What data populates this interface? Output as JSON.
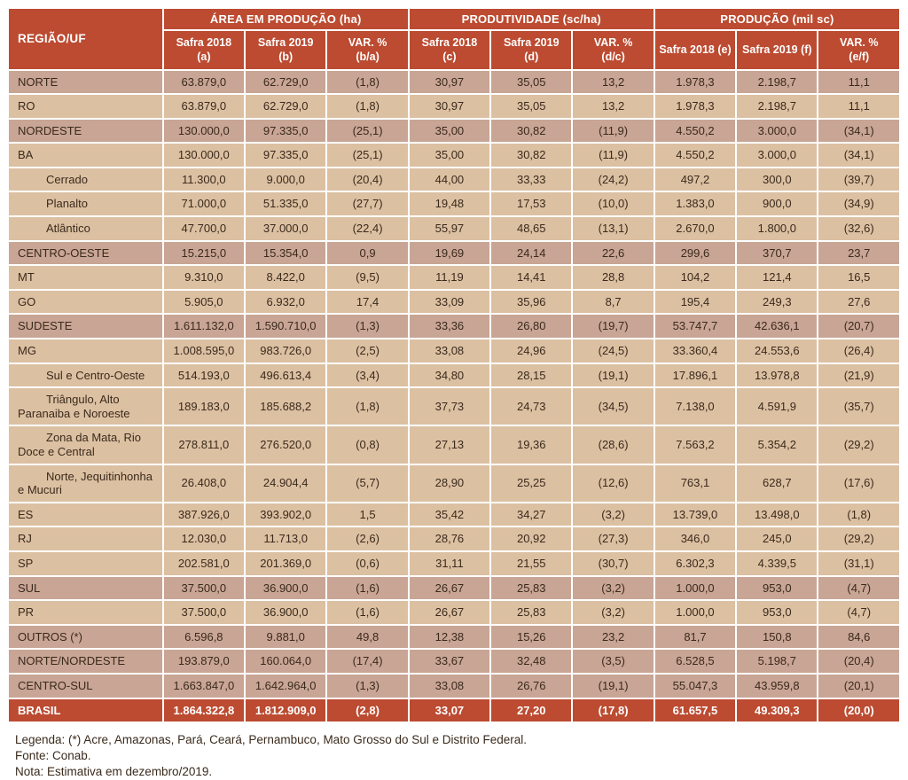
{
  "colors": {
    "header_red": "#bc4b31",
    "row_region": "#c9a595",
    "row_state": "#dcc0a2",
    "ink": "#3a2a1c"
  },
  "table": {
    "corner_header": "REGIÃO/UF",
    "groups": [
      {
        "label": "ÁREA EM PRODUÇÃO (ha)"
      },
      {
        "label": "PRODUTIVIDADE (sc/ha)"
      },
      {
        "label": "PRODUÇÃO  (mil sc)"
      }
    ],
    "sub_headers": [
      [
        "Safra 2018",
        "(a)"
      ],
      [
        "Safra 2019",
        "(b)"
      ],
      [
        "VAR. %",
        "(b/a)"
      ],
      [
        "Safra 2018",
        "(c)"
      ],
      [
        "Safra 2019",
        "(d)"
      ],
      [
        "VAR. %",
        "(d/c)"
      ],
      [
        "Safra 2018 (e)",
        ""
      ],
      [
        "Safra 2019 (f)",
        ""
      ],
      [
        "VAR. %",
        "(e/f)"
      ]
    ],
    "rows": [
      {
        "label": "NORTE",
        "style": "region",
        "indent": false,
        "values": [
          "63.879,0",
          "62.729,0",
          "(1,8)",
          "30,97",
          "35,05",
          "13,2",
          "1.978,3",
          "2.198,7",
          "11,1"
        ]
      },
      {
        "label": "RO",
        "style": "state",
        "indent": false,
        "values": [
          "63.879,0",
          "62.729,0",
          "(1,8)",
          "30,97",
          "35,05",
          "13,2",
          "1.978,3",
          "2.198,7",
          "11,1"
        ]
      },
      {
        "label": "NORDESTE",
        "style": "region",
        "indent": false,
        "values": [
          "130.000,0",
          "97.335,0",
          "(25,1)",
          "35,00",
          "30,82",
          "(11,9)",
          "4.550,2",
          "3.000,0",
          "(34,1)"
        ]
      },
      {
        "label": "BA",
        "style": "state",
        "indent": false,
        "values": [
          "130.000,0",
          "97.335,0",
          "(25,1)",
          "35,00",
          "30,82",
          "(11,9)",
          "4.550,2",
          "3.000,0",
          "(34,1)"
        ]
      },
      {
        "label": "Cerrado",
        "style": "state",
        "indent": true,
        "values": [
          "11.300,0",
          "9.000,0",
          "(20,4)",
          "44,00",
          "33,33",
          "(24,2)",
          "497,2",
          "300,0",
          "(39,7)"
        ]
      },
      {
        "label": "Planalto",
        "style": "state",
        "indent": true,
        "values": [
          "71.000,0",
          "51.335,0",
          "(27,7)",
          "19,48",
          "17,53",
          "(10,0)",
          "1.383,0",
          "900,0",
          "(34,9)"
        ]
      },
      {
        "label": "Atlântico",
        "style": "state",
        "indent": true,
        "values": [
          "47.700,0",
          "37.000,0",
          "(22,4)",
          "55,97",
          "48,65",
          "(13,1)",
          "2.670,0",
          "1.800,0",
          "(32,6)"
        ]
      },
      {
        "label": "CENTRO-OESTE",
        "style": "region",
        "indent": false,
        "values": [
          "15.215,0",
          "15.354,0",
          "0,9",
          "19,69",
          "24,14",
          "22,6",
          "299,6",
          "370,7",
          "23,7"
        ]
      },
      {
        "label": "MT",
        "style": "state",
        "indent": false,
        "values": [
          "9.310,0",
          "8.422,0",
          "(9,5)",
          "11,19",
          "14,41",
          "28,8",
          "104,2",
          "121,4",
          "16,5"
        ]
      },
      {
        "label": "GO",
        "style": "state",
        "indent": false,
        "values": [
          "5.905,0",
          "6.932,0",
          "17,4",
          "33,09",
          "35,96",
          "8,7",
          "195,4",
          "249,3",
          "27,6"
        ]
      },
      {
        "label": "SUDESTE",
        "style": "region",
        "indent": false,
        "values": [
          "1.611.132,0",
          "1.590.710,0",
          "(1,3)",
          "33,36",
          "26,80",
          "(19,7)",
          "53.747,7",
          "42.636,1",
          "(20,7)"
        ]
      },
      {
        "label": "MG",
        "style": "state",
        "indent": false,
        "values": [
          "1.008.595,0",
          "983.726,0",
          "(2,5)",
          "33,08",
          "24,96",
          "(24,5)",
          "33.360,4",
          "24.553,6",
          "(26,4)"
        ]
      },
      {
        "label": "Sul e Centro-Oeste",
        "style": "state",
        "indent": true,
        "values": [
          "514.193,0",
          "496.613,4",
          "(3,4)",
          "34,80",
          "28,15",
          "(19,1)",
          "17.896,1",
          "13.978,8",
          "(21,9)"
        ]
      },
      {
        "label": "Triângulo, Alto Paranaiba e Noroeste",
        "style": "state",
        "indent": true,
        "values": [
          "189.183,0",
          "185.688,2",
          "(1,8)",
          "37,73",
          "24,73",
          "(34,5)",
          "7.138,0",
          "4.591,9",
          "(35,7)"
        ]
      },
      {
        "label": "Zona da Mata, Rio Doce e Central",
        "style": "state",
        "indent": true,
        "values": [
          "278.811,0",
          "276.520,0",
          "(0,8)",
          "27,13",
          "19,36",
          "(28,6)",
          "7.563,2",
          "5.354,2",
          "(29,2)"
        ]
      },
      {
        "label": "Norte, Jequitinhonha e Mucuri",
        "style": "state",
        "indent": true,
        "values": [
          "26.408,0",
          "24.904,4",
          "(5,7)",
          "28,90",
          "25,25",
          "(12,6)",
          "763,1",
          "628,7",
          "(17,6)"
        ]
      },
      {
        "label": "ES",
        "style": "state",
        "indent": false,
        "values": [
          "387.926,0",
          "393.902,0",
          "1,5",
          "35,42",
          "34,27",
          "(3,2)",
          "13.739,0",
          "13.498,0",
          "(1,8)"
        ]
      },
      {
        "label": "RJ",
        "style": "state",
        "indent": false,
        "values": [
          "12.030,0",
          "11.713,0",
          "(2,6)",
          "28,76",
          "20,92",
          "(27,3)",
          "346,0",
          "245,0",
          "(29,2)"
        ]
      },
      {
        "label": "SP",
        "style": "state",
        "indent": false,
        "values": [
          "202.581,0",
          "201.369,0",
          "(0,6)",
          "31,11",
          "21,55",
          "(30,7)",
          "6.302,3",
          "4.339,5",
          "(31,1)"
        ]
      },
      {
        "label": "SUL",
        "style": "region",
        "indent": false,
        "values": [
          "37.500,0",
          "36.900,0",
          "(1,6)",
          "26,67",
          "25,83",
          "(3,2)",
          "1.000,0",
          "953,0",
          "(4,7)"
        ]
      },
      {
        "label": "PR",
        "style": "state",
        "indent": false,
        "values": [
          "37.500,0",
          "36.900,0",
          "(1,6)",
          "26,67",
          "25,83",
          "(3,2)",
          "1.000,0",
          "953,0",
          "(4,7)"
        ]
      },
      {
        "label": "OUTROS (*)",
        "style": "region",
        "indent": false,
        "values": [
          "6.596,8",
          "9.881,0",
          "49,8",
          "12,38",
          "15,26",
          "23,2",
          "81,7",
          "150,8",
          "84,6"
        ]
      },
      {
        "label": "NORTE/NORDESTE",
        "style": "region",
        "indent": false,
        "values": [
          "193.879,0",
          "160.064,0",
          "(17,4)",
          "33,67",
          "32,48",
          "(3,5)",
          "6.528,5",
          "5.198,7",
          "(20,4)"
        ]
      },
      {
        "label": "CENTRO-SUL",
        "style": "region",
        "indent": false,
        "values": [
          "1.663.847,0",
          "1.642.964,0",
          "(1,3)",
          "33,08",
          "26,76",
          "(19,1)",
          "55.047,3",
          "43.959,8",
          "(20,1)"
        ]
      },
      {
        "label": "BRASIL",
        "style": "total",
        "indent": false,
        "values": [
          "1.864.322,8",
          "1.812.909,0",
          "(2,8)",
          "33,07",
          "27,20",
          "(17,8)",
          "61.657,5",
          "49.309,3",
          "(20,0)"
        ]
      }
    ]
  },
  "footer": {
    "lines": [
      "Legenda: (*) Acre, Amazonas, Pará, Ceará, Pernambuco, Mato Grosso do Sul e Distrito Federal.",
      "Fonte: Conab.",
      "Nota: Estimativa em dezembro/2019."
    ]
  }
}
